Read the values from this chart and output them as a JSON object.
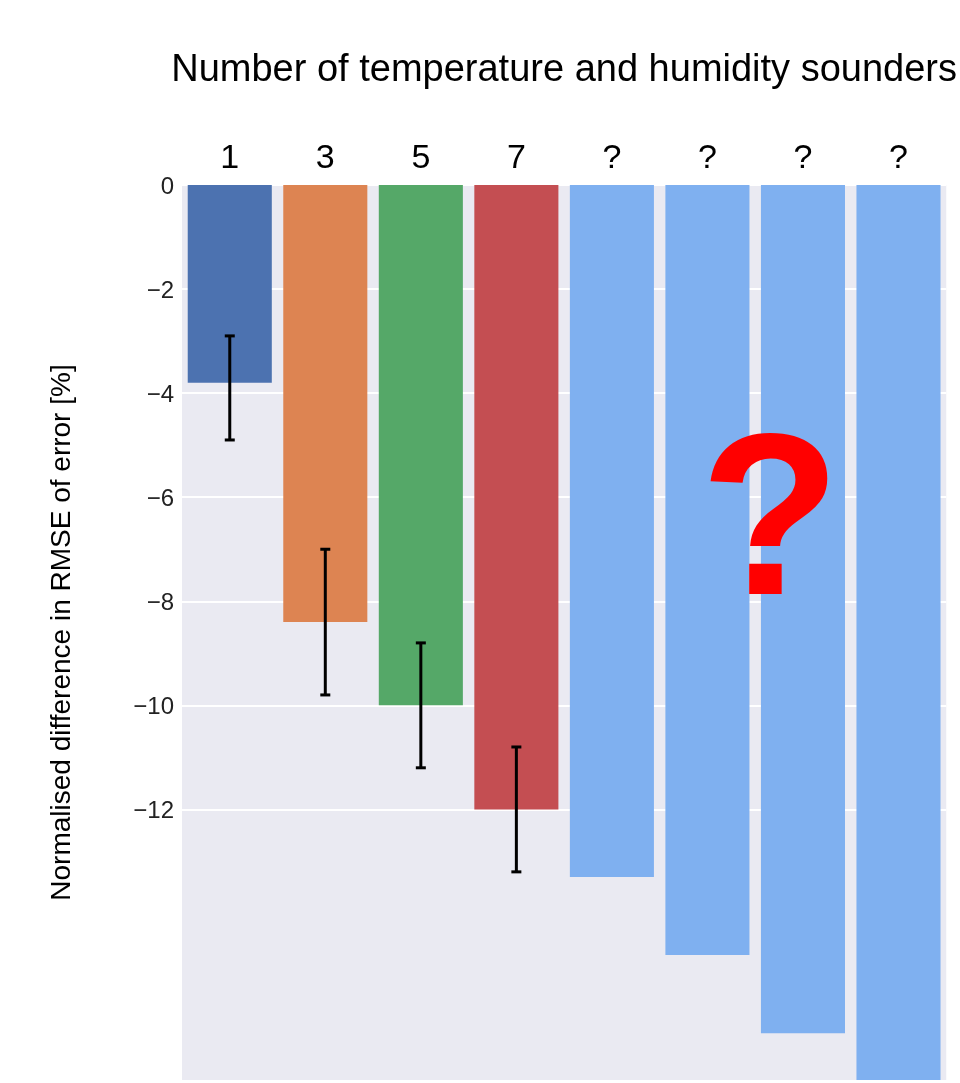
{
  "chart_data": {
    "type": "bar",
    "xlabel": "Number of temperature and humidity sounders",
    "ylabel": "Normalised difference in RMSE of error [%]",
    "categories": [
      "1",
      "3",
      "5",
      "7",
      "?",
      "?",
      "?",
      "?"
    ],
    "values": [
      -3.8,
      -8.4,
      -10,
      -12,
      -13.3,
      -14.8,
      -16.3,
      -17.2
    ],
    "colors": [
      "#4c72b0",
      "#dd8452",
      "#55a868",
      "#c44e52",
      "#7fb0f0",
      "#7fb0f0",
      "#7fb0f0",
      "#7fb0f0"
    ],
    "errors": [
      [
        -4.9,
        -2.9
      ],
      [
        -9.8,
        -7.0
      ],
      [
        -11.2,
        -8.8
      ],
      [
        -13.2,
        -10.8
      ],
      null,
      null,
      null,
      null
    ],
    "ylim": [
      -17.2,
      0
    ],
    "yticks": [
      0,
      {
        "value": -2,
        "label": "−2"
      },
      {
        "value": -4,
        "label": "−4"
      },
      {
        "value": -6,
        "label": "−6"
      },
      {
        "value": -8,
        "label": "−8"
      },
      {
        "value": -10,
        "label": "−10"
      },
      {
        "value": -12,
        "label": "−12"
      }
    ],
    "grid": "y",
    "annotations": [
      "?"
    ]
  }
}
